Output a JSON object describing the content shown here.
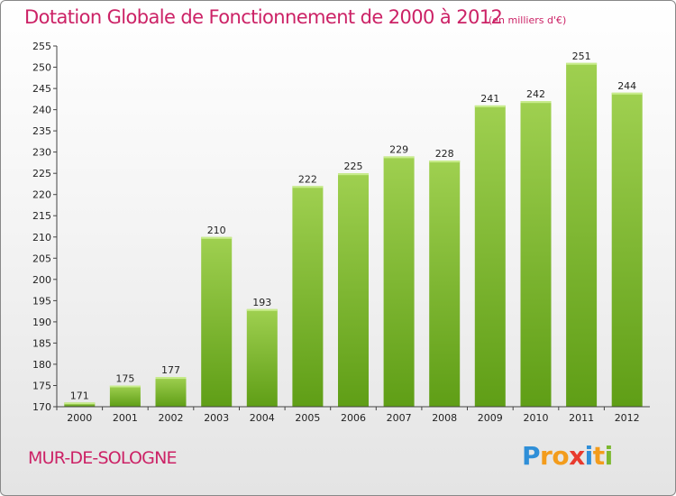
{
  "page": {
    "title": "Dotation Globale de Fonctionnement de 2000 à 2012",
    "subtitle": "(en milliers d'€)",
    "commune": "MUR-DE-SOLOGNE",
    "logo": {
      "text": "Proxiti",
      "letters": [
        {
          "char": "P",
          "color": "#2f8fd8"
        },
        {
          "char": "r",
          "color": "#f39c1c"
        },
        {
          "char": "o",
          "color": "#f39c1c"
        },
        {
          "char": "x",
          "color": "#e83a2e"
        },
        {
          "char": "i",
          "color": "#2f8fd8"
        },
        {
          "char": "t",
          "color": "#f39c1c"
        },
        {
          "char": "i",
          "color": "#7cb82f"
        }
      ]
    }
  },
  "chart_data": {
    "type": "bar",
    "title": "Dotation Globale de Fonctionnement de 2000 à 2012",
    "subtitle": "(en milliers d'€)",
    "categories": [
      "2000",
      "2001",
      "2002",
      "2003",
      "2004",
      "2005",
      "2006",
      "2007",
      "2008",
      "2009",
      "2010",
      "2011",
      "2012"
    ],
    "values": [
      171,
      175,
      177,
      210,
      193,
      222,
      225,
      229,
      228,
      241,
      242,
      251,
      244
    ],
    "ylim": [
      170,
      255
    ],
    "yticks": [
      170,
      175,
      180,
      185,
      190,
      195,
      200,
      205,
      210,
      215,
      220,
      225,
      230,
      235,
      240,
      245,
      250,
      255
    ],
    "grid": false,
    "data_labels": true,
    "colors": {
      "bar_top": "#9fd050",
      "bar_bottom": "#5f9e16",
      "axis": "#444444",
      "text": "#222222",
      "accent": "#cc2266"
    }
  }
}
